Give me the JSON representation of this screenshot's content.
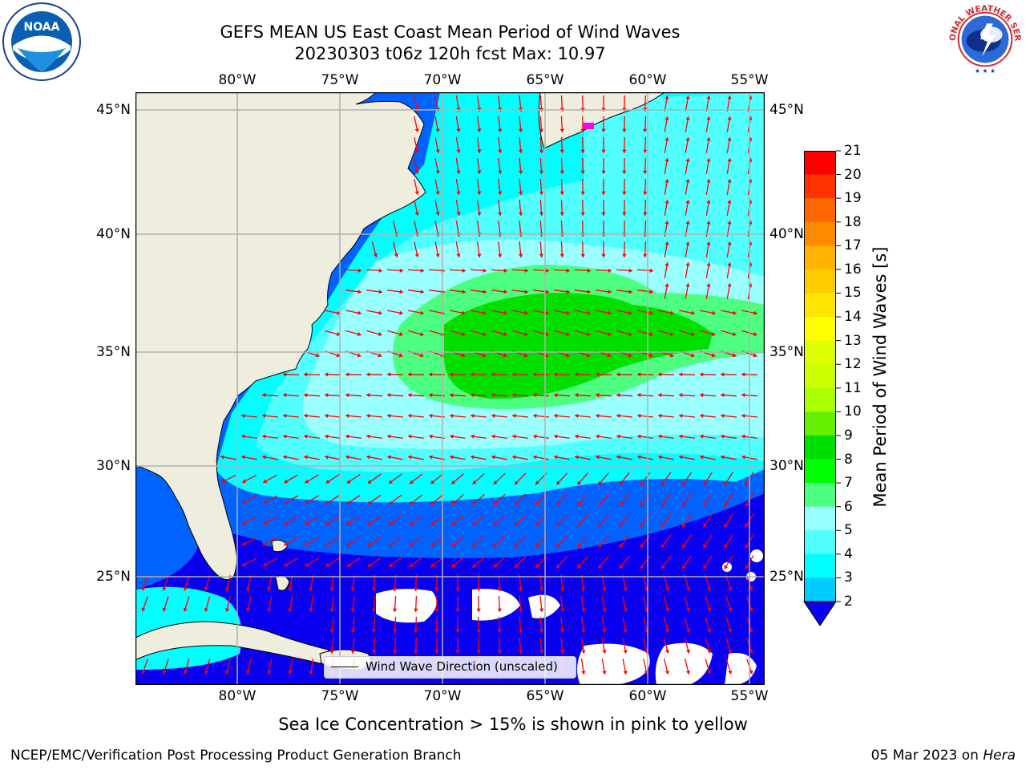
{
  "title": {
    "line1": "GEFS MEAN US East Coast Mean Period of Wind Waves",
    "line2": "20230303 t06z 120h fcst   Max: 10.97"
  },
  "axes": {
    "lon_labels": [
      "80°W",
      "75°W",
      "70°W",
      "65°W",
      "60°W",
      "55°W"
    ],
    "lat_labels": [
      "45°N",
      "40°N",
      "35°N",
      "30°N",
      "25°N"
    ],
    "lon_range": [
      -85,
      -54.2
    ],
    "lat_range": [
      20.5,
      45.8
    ],
    "grid": true
  },
  "colorbar": {
    "label": "Mean Period of Wind Waves [s]",
    "ticks": [
      "21",
      "20",
      "19",
      "18",
      "17",
      "16",
      "15",
      "14",
      "13",
      "12",
      "11",
      "10",
      "9",
      "8",
      "7",
      "6",
      "5",
      "4",
      "3",
      "2"
    ],
    "range": [
      2,
      21
    ],
    "extend": "min",
    "colors": [
      "#0063ff",
      "#00ccff",
      "#00ffff",
      "#52ffff",
      "#99ffff",
      "#4dff80",
      "#00ff00",
      "#00e000",
      "#66ee00",
      "#aaff00",
      "#ccff00",
      "#ddff00",
      "#ffff00",
      "#ffe600",
      "#ffcc00",
      "#ffb300",
      "#ff8c00",
      "#ff6600",
      "#ff3300",
      "#ff0000"
    ],
    "below_color": "#0a00f0"
  },
  "legend": {
    "label": "Wind Wave Direction (unscaled)"
  },
  "map": {
    "land_color": "#efedde",
    "arrow_color": "#ff0000",
    "ice_color": "#ff00ff"
  },
  "note": "Sea Ice Concentration > 15% is shown in pink to yellow",
  "footer": {
    "left": "NCEP/EMC/Verification Post Processing Product Generation Branch",
    "date": "05 Mar 2023 on",
    "machine": "Hera"
  },
  "logos": {
    "noaa_text": "NOAA",
    "nws_text": "NATIONAL WEATHER SERVICE"
  }
}
